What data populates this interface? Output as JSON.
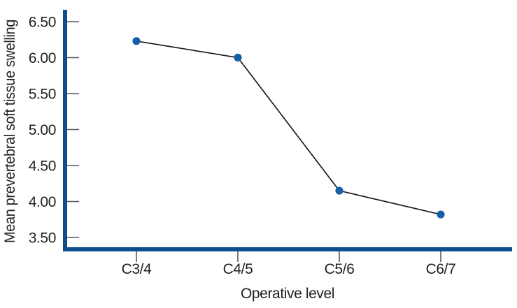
{
  "figure": {
    "background": "#ffffff"
  },
  "chart_data": {
    "type": "line",
    "title": "",
    "categories": [
      "C3/4",
      "C4/5",
      "C5/6",
      "C6/7"
    ],
    "values": [
      6.23,
      6.0,
      4.15,
      3.82
    ],
    "xlabel": "Operative level",
    "ylabel": "Mean prevertebral soft tissue swelling",
    "y_ticks": [
      3.5,
      4.0,
      4.5,
      5.0,
      5.5,
      6.0,
      6.5
    ],
    "y_tick_format_decimals": 2,
    "ylim": [
      3.33,
      6.67
    ],
    "grid": false,
    "legend_position": "none",
    "marker_shape": "circle",
    "colors": {
      "axis": "#0f4e8c",
      "marker": "#155fa8",
      "line": "#1a1a1a",
      "tick": "#595959",
      "text": "#231f20"
    }
  }
}
